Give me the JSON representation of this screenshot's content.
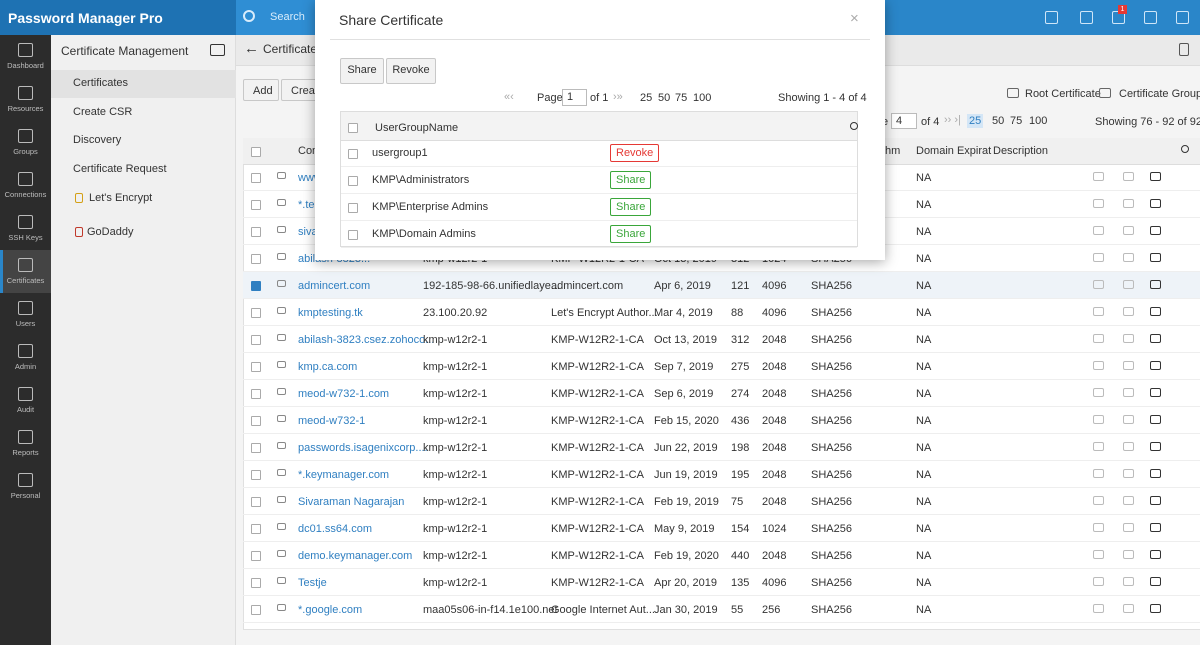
{
  "topbar": {
    "product": "Password Manager Pro",
    "search": "Search",
    "badge": "1"
  },
  "nav": [
    "Dashboard",
    "Resources",
    "Groups",
    "Connections",
    "SSH Keys",
    "Certificates",
    "Users",
    "Admin",
    "Audit",
    "Reports",
    "Personal"
  ],
  "sidebar": {
    "title": "Certificate Management",
    "items": [
      "Certificates",
      "Create CSR",
      "Discovery",
      "Certificate Request",
      "Let's Encrypt",
      "GoDaddy"
    ]
  },
  "main": {
    "title": "Certificates",
    "buttons": [
      "Add",
      "Creat"
    ],
    "links": [
      "Root Certificate",
      "Certificate Group"
    ],
    "pagination": {
      "prefix": "e",
      "page": "4",
      "of": "of 4",
      "sizes": [
        "25",
        "50",
        "75",
        "100"
      ],
      "showing": "Showing 76 - 92 of 92"
    },
    "columns": [
      "Comm",
      "hm",
      "Domain Expirat",
      "Description"
    ],
    "selected_row": 4,
    "rows": [
      [
        "www",
        null,
        null,
        null,
        null,
        null,
        null,
        "NA"
      ],
      [
        "*.te",
        null,
        null,
        null,
        null,
        null,
        null,
        "NA"
      ],
      [
        "siva",
        null,
        null,
        null,
        null,
        null,
        null,
        "NA"
      ],
      [
        "abilash-3823...",
        "kmp-w12r2-1",
        "KMP-W12R2-1-CA",
        "Oct 13, 2019",
        "312",
        "1024",
        "SHA256",
        "NA"
      ],
      [
        "admincert.com",
        "192-185-98-66.unifiedlaye...",
        "admincert.com",
        "Apr 6, 2019",
        "121",
        "4096",
        "SHA256",
        "NA"
      ],
      [
        "kmptesting.tk",
        "23.100.20.92",
        "Let's Encrypt Author...",
        "Mar 4, 2019",
        "88",
        "4096",
        "SHA256",
        "NA"
      ],
      [
        "abilash-3823.csez.zohoco...",
        "kmp-w12r2-1",
        "KMP-W12R2-1-CA",
        "Oct 13, 2019",
        "312",
        "2048",
        "SHA256",
        "NA"
      ],
      [
        "kmp.ca.com",
        "kmp-w12r2-1",
        "KMP-W12R2-1-CA",
        "Sep 7, 2019",
        "275",
        "2048",
        "SHA256",
        "NA"
      ],
      [
        "meod-w732-1.com",
        "kmp-w12r2-1",
        "KMP-W12R2-1-CA",
        "Sep 6, 2019",
        "274",
        "2048",
        "SHA256",
        "NA"
      ],
      [
        "meod-w732-1",
        "kmp-w12r2-1",
        "KMP-W12R2-1-CA",
        "Feb 15, 2020",
        "436",
        "2048",
        "SHA256",
        "NA"
      ],
      [
        "passwords.isagenixcorp....",
        "kmp-w12r2-1",
        "KMP-W12R2-1-CA",
        "Jun 22, 2019",
        "198",
        "2048",
        "SHA256",
        "NA"
      ],
      [
        "*.keymanager.com",
        "kmp-w12r2-1",
        "KMP-W12R2-1-CA",
        "Jun 19, 2019",
        "195",
        "2048",
        "SHA256",
        "NA"
      ],
      [
        "Sivaraman Nagarajan",
        "kmp-w12r2-1",
        "KMP-W12R2-1-CA",
        "Feb 19, 2019",
        "75",
        "2048",
        "SHA256",
        "NA"
      ],
      [
        "dc01.ss64.com",
        "kmp-w12r2-1",
        "KMP-W12R2-1-CA",
        "May 9, 2019",
        "154",
        "1024",
        "SHA256",
        "NA"
      ],
      [
        "demo.keymanager.com",
        "kmp-w12r2-1",
        "KMP-W12R2-1-CA",
        "Feb 19, 2020",
        "440",
        "2048",
        "SHA256",
        "NA"
      ],
      [
        "Testje",
        "kmp-w12r2-1",
        "KMP-W12R2-1-CA",
        "Apr 20, 2019",
        "135",
        "4096",
        "SHA256",
        "NA"
      ],
      [
        "*.google.com",
        "maa05s06-in-f14.1e100.net",
        "Google Internet Aut...",
        "Jan 30, 2019",
        "55",
        "256",
        "SHA256",
        "NA"
      ]
    ]
  },
  "modal": {
    "title": "Share Certificate",
    "close": "×",
    "buttons": [
      "Share",
      "Revoke"
    ],
    "pagination": {
      "page_label": "Page",
      "page": "1",
      "of": "of 1",
      "sizes": [
        "25",
        "50",
        "75",
        "100"
      ],
      "showing": "Showing 1 - 4 of 4"
    },
    "column": "UserGroupName",
    "rows": [
      {
        "name": "usergroup1",
        "action": "Revoke"
      },
      {
        "name": "KMP\\Administrators",
        "action": "Share"
      },
      {
        "name": "KMP\\Enterprise Admins",
        "action": "Share"
      },
      {
        "name": "KMP\\Domain Admins",
        "action": "Share"
      }
    ]
  }
}
